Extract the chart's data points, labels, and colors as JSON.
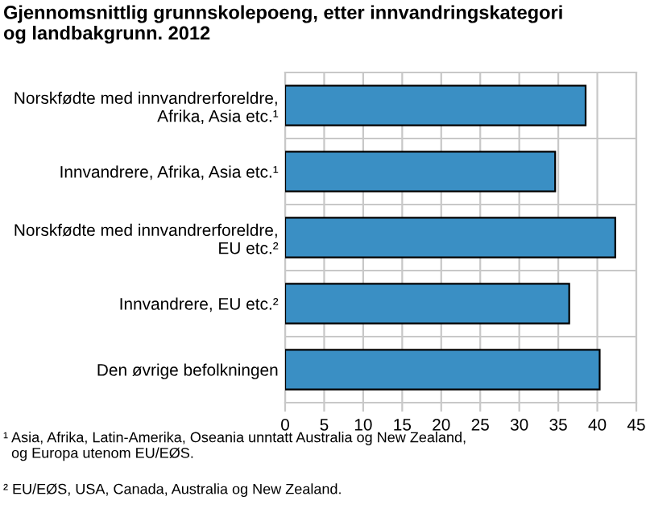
{
  "chart_data": {
    "type": "bar",
    "orientation": "horizontal",
    "title": "Gjennomsnittlig grunnskolepoeng, etter innvandringskategori\nog landbakgrunn. 2012",
    "categories": [
      "Norskfødte med innvandrerforeldre,\nAfrika, Asia etc.¹",
      "Innvandrere, Afrika, Asia etc.¹",
      "Norskfødte med innvandrerforeldre,\nEU etc.²",
      "Innvandrere, EU etc.²",
      "Den øvrige befolkningen"
    ],
    "values": [
      38.5,
      34.6,
      42.3,
      36.4,
      40.3
    ],
    "color": "#3a8fc4",
    "xlim": [
      0,
      45
    ],
    "xticks": [
      0,
      5,
      10,
      15,
      20,
      25,
      30,
      35,
      40,
      45
    ],
    "grid": true,
    "annotations": [
      "¹ Asia, Afrika, Latin-Amerika, Oseania unntatt Australia og New Zealand,\n  og Europa utenom EU/EØS.",
      "² EU/EØS, USA, Canada, Australia og New Zealand."
    ]
  }
}
